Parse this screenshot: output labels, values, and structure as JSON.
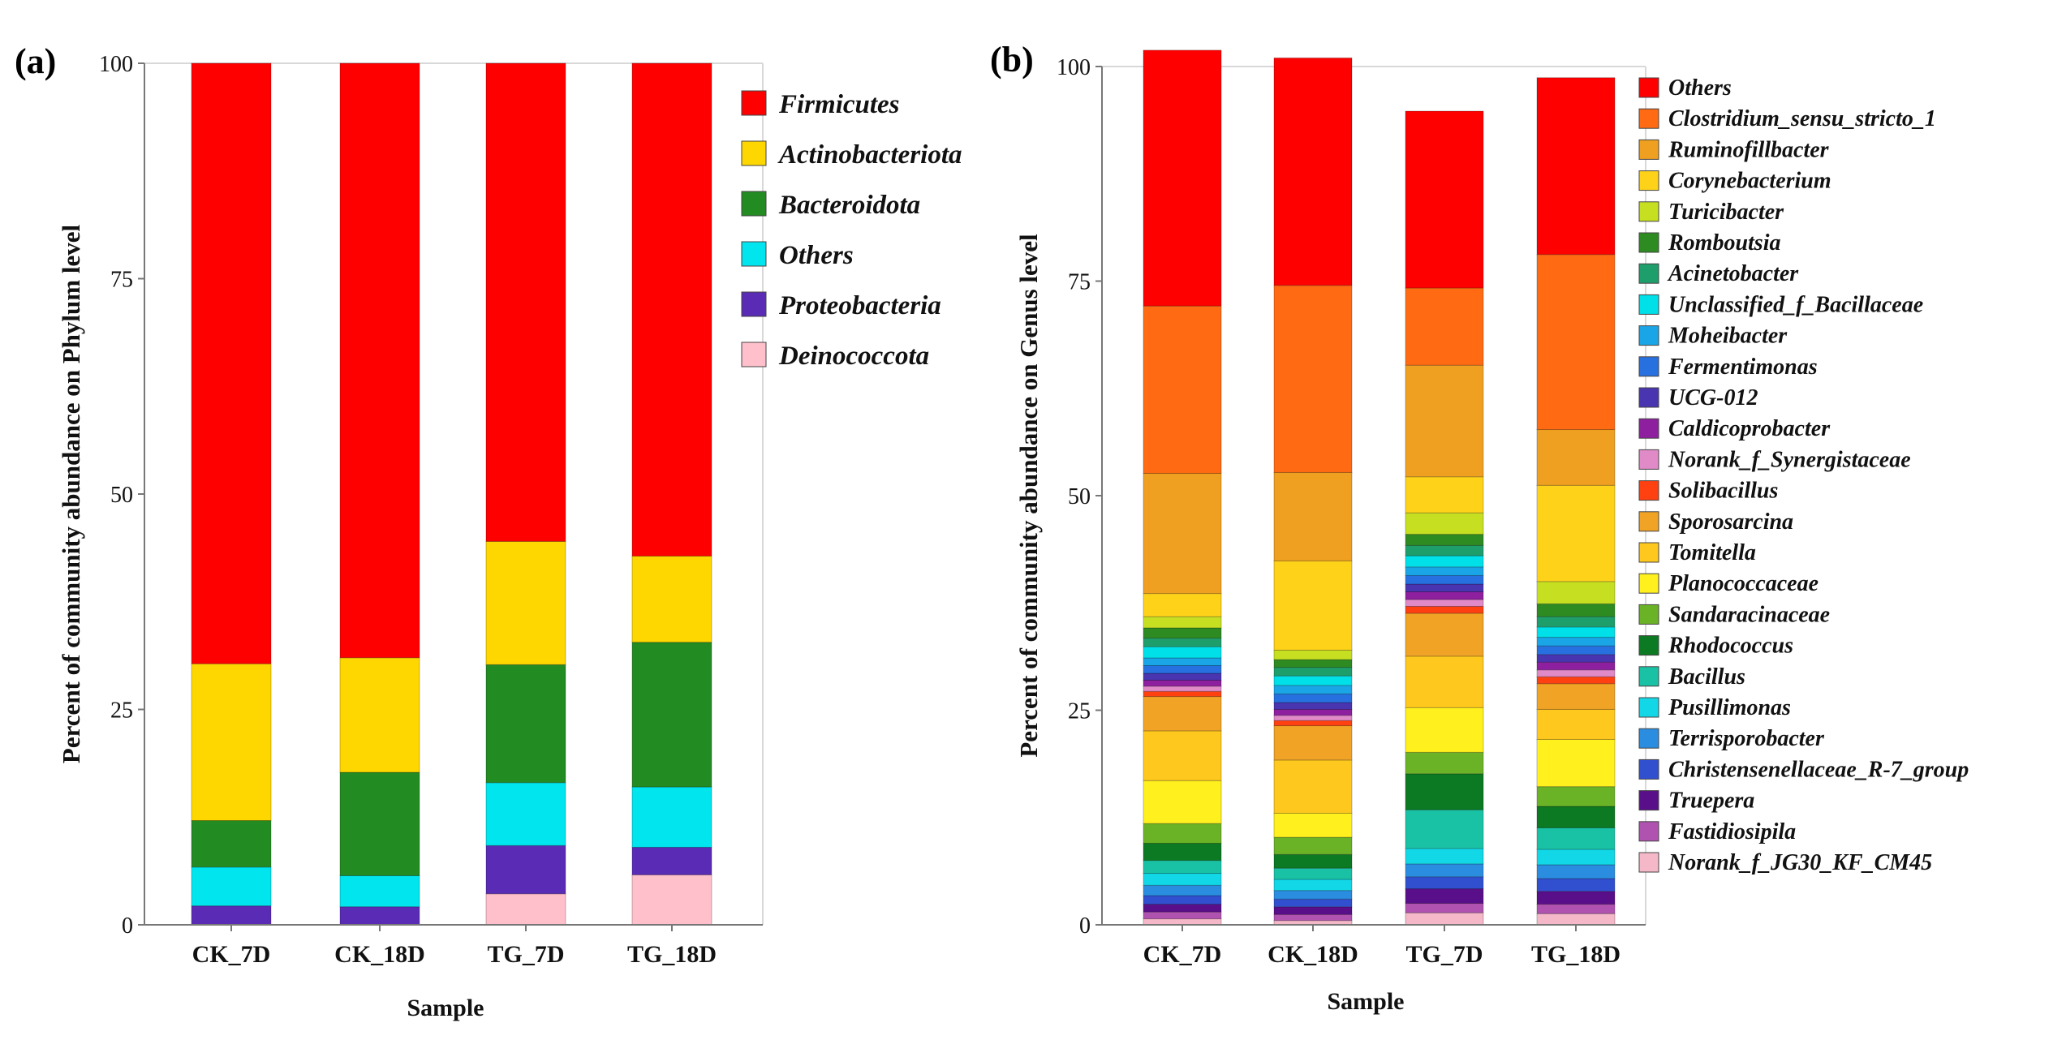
{
  "chart_data": [
    {
      "type": "bar",
      "stacked": true,
      "panel_label": "(a)",
      "title": "",
      "xlabel": "Sample",
      "ylabel": "Percent of community abundance on Phylum level",
      "categories": [
        "CK_7D",
        "CK_18D",
        "TG_7D",
        "TG_18D"
      ],
      "ylim": [
        0,
        100
      ],
      "yticks": [
        "0",
        "25",
        "50",
        "75",
        "100"
      ],
      "legend_position": "right",
      "series": [
        {
          "name": "Firmicutes",
          "color": "#ff0000",
          "values": [
            69.7,
            69.0,
            55.5,
            57.2
          ]
        },
        {
          "name": "Actinobacteriota",
          "color": "#ffd700",
          "values": [
            18.2,
            13.3,
            14.3,
            10.0
          ]
        },
        {
          "name": "Bacteroidota",
          "color": "#228b22",
          "values": [
            5.4,
            12.0,
            13.7,
            16.8
          ]
        },
        {
          "name": "Others",
          "color": "#00e5ee",
          "values": [
            4.5,
            3.6,
            7.3,
            7.0
          ]
        },
        {
          "name": "Proteobacteria",
          "color": "#5a2bb5",
          "values": [
            2.2,
            2.1,
            5.6,
            3.2
          ]
        },
        {
          "name": "Deinococcota",
          "color": "#ffc0cb",
          "values": [
            0.0,
            0.0,
            3.6,
            5.8
          ]
        }
      ]
    },
    {
      "type": "bar",
      "stacked": true,
      "panel_label": "(b)",
      "title": "",
      "xlabel": "Sample",
      "ylabel": "Percent of community abundance on Genus level",
      "categories": [
        "CK_7D",
        "CK_18D",
        "TG_7D",
        "TG_18D"
      ],
      "ylim": [
        0,
        100
      ],
      "yticks": [
        "0",
        "25",
        "50",
        "75",
        "100"
      ],
      "legend_position": "right",
      "series": [
        {
          "name": "Others",
          "color": "#ff0000",
          "values": [
            29.8,
            26.5,
            20.6,
            20.6
          ]
        },
        {
          "name": "Clostridium_sensu_stricto_1",
          "color": "#ff6a13",
          "values": [
            19.5,
            21.8,
            9.0,
            20.4
          ]
        },
        {
          "name": "Ruminofillbacter",
          "color": "#f0a020",
          "values": [
            14.0,
            10.3,
            13.0,
            6.5
          ]
        },
        {
          "name": "Corynebacterium",
          "color": "#ffd21a",
          "values": [
            2.7,
            10.4,
            4.2,
            11.2
          ]
        },
        {
          "name": "Turicibacter",
          "color": "#c6e021",
          "values": [
            1.3,
            1.1,
            2.5,
            2.6
          ]
        },
        {
          "name": "Romboutsia",
          "color": "#2e8b22",
          "values": [
            1.2,
            0.9,
            1.3,
            1.5
          ]
        },
        {
          "name": "Acinetobacter",
          "color": "#1e9e6b",
          "values": [
            1.0,
            1.0,
            1.2,
            1.2
          ]
        },
        {
          "name": "Unclassified_f_Bacillaceae",
          "color": "#00e0e8",
          "values": [
            1.3,
            1.1,
            1.3,
            1.2
          ]
        },
        {
          "name": "Moheibacter",
          "color": "#1aa6e6",
          "values": [
            0.9,
            1.0,
            1.0,
            1.0
          ]
        },
        {
          "name": "Fermentimonas",
          "color": "#2670e0",
          "values": [
            0.9,
            1.0,
            1.0,
            1.0
          ]
        },
        {
          "name": "UCG-012",
          "color": "#4a35b0",
          "values": [
            0.8,
            0.8,
            0.9,
            0.9
          ]
        },
        {
          "name": "Caldicoprobacter",
          "color": "#8e1f9e",
          "values": [
            0.7,
            0.7,
            0.9,
            0.9
          ]
        },
        {
          "name": "Norank_f_Synergistaceae",
          "color": "#e08ac8",
          "values": [
            0.6,
            0.6,
            0.8,
            0.8
          ]
        },
        {
          "name": "Solibacillus",
          "color": "#ff4010",
          "values": [
            0.6,
            0.6,
            0.8,
            0.8
          ]
        },
        {
          "name": "Sporosarcina",
          "color": "#f0a325",
          "values": [
            4.0,
            4.0,
            5.0,
            3.0
          ]
        },
        {
          "name": "Tomitella",
          "color": "#ffc81e",
          "values": [
            5.8,
            6.2,
            6.0,
            3.5
          ]
        },
        {
          "name": "Planococcaceae",
          "color": "#fff01e",
          "values": [
            5.0,
            2.8,
            5.2,
            5.5
          ]
        },
        {
          "name": "Sandaracinaceae",
          "color": "#6bb326",
          "values": [
            2.3,
            2.0,
            2.5,
            2.3
          ]
        },
        {
          "name": "Rhodococcus",
          "color": "#0c7a22",
          "values": [
            2.0,
            1.6,
            4.2,
            2.5
          ]
        },
        {
          "name": "Bacillus",
          "color": "#19c2a5",
          "values": [
            1.5,
            1.3,
            4.5,
            2.5
          ]
        },
        {
          "name": "Pusillimonas",
          "color": "#12d7e6",
          "values": [
            1.4,
            1.3,
            1.8,
            1.8
          ]
        },
        {
          "name": "Terrisporobacter",
          "color": "#2a8de0",
          "values": [
            1.2,
            1.0,
            1.5,
            1.6
          ]
        },
        {
          "name": "Christensenellaceae_R-7_group",
          "color": "#3150d0",
          "values": [
            1.0,
            0.9,
            1.4,
            1.5
          ]
        },
        {
          "name": "Truepera",
          "color": "#5a0f8a",
          "values": [
            0.9,
            0.9,
            1.7,
            1.5
          ]
        },
        {
          "name": "Fastidiosipila",
          "color": "#b053b0",
          "values": [
            0.8,
            0.7,
            1.1,
            1.1
          ]
        },
        {
          "name": "Norank_f_JG30_KF_CM45",
          "color": "#f5b8c8",
          "values": [
            0.7,
            0.5,
            1.4,
            1.3
          ]
        }
      ]
    }
  ]
}
